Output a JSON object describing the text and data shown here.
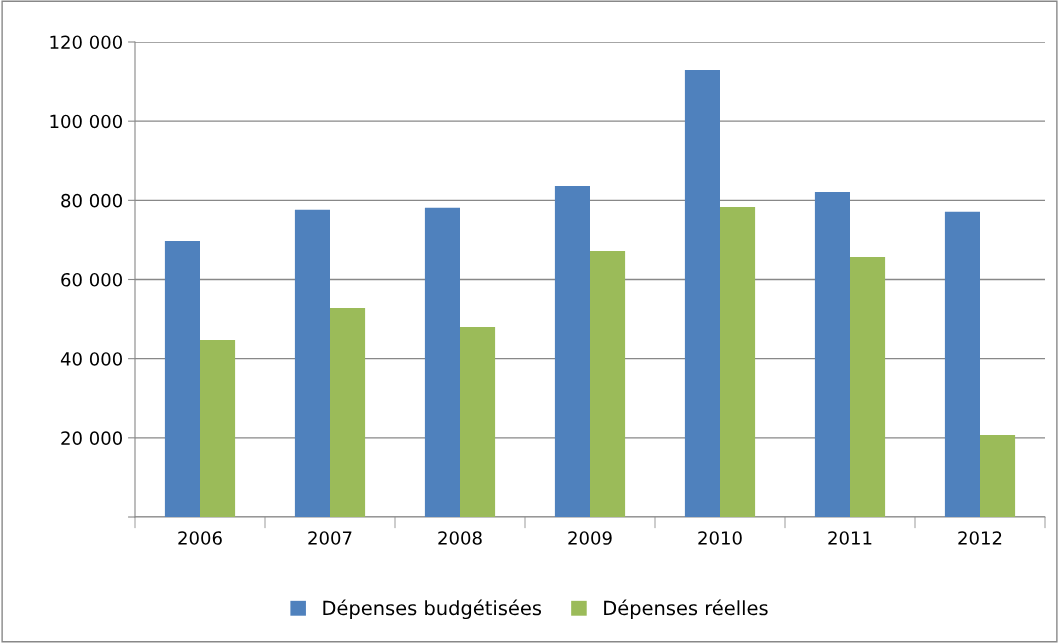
{
  "chart_data": {
    "type": "bar",
    "categories": [
      "2006",
      "2007",
      "2008",
      "2009",
      "2010",
      "2011",
      "2012"
    ],
    "series": [
      {
        "name": "Dépenses budgétisées",
        "color": "#4f81bd",
        "values": [
          69700,
          77600,
          78100,
          83600,
          112900,
          82100,
          77100
        ]
      },
      {
        "name": "Dépenses réelles",
        "color": "#9bbb59",
        "values": [
          44700,
          52800,
          48000,
          67200,
          78300,
          65700,
          20700
        ]
      }
    ],
    "ylim": [
      0,
      120000
    ],
    "yticks": [
      {
        "value": 0,
        "label": null
      },
      {
        "value": 20000,
        "label": "20 000"
      },
      {
        "value": 40000,
        "label": "40 000"
      },
      {
        "value": 60000,
        "label": "60 000"
      },
      {
        "value": 80000,
        "label": "80 000"
      },
      {
        "value": 100000,
        "label": "100 000"
      },
      {
        "value": 120000,
        "label": "120 000"
      }
    ],
    "grid": "y",
    "legend": "bottom"
  }
}
